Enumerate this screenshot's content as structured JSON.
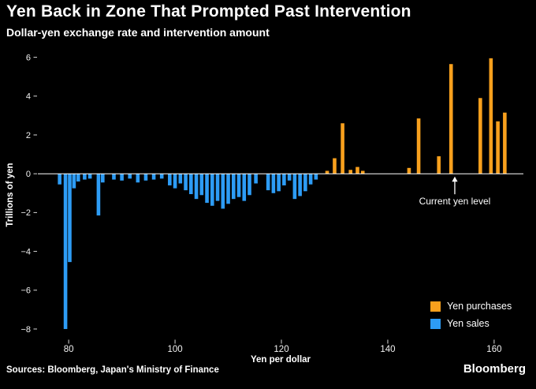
{
  "footer": {
    "sources": "Sources: Bloomberg, Japan's Ministry of Finance",
    "brand": "Bloomberg"
  },
  "chart_data": {
    "type": "bar",
    "title": "Yen Back in Zone That Prompted Past Intervention",
    "subtitle": "Dollar-yen exchange rate and intervention amount",
    "xlabel": "Yen per dollar",
    "ylabel": "Trillions of yen",
    "xlim": [
      74.2,
      165.5
    ],
    "ylim": [
      -8.55,
      6.35
    ],
    "x_ticks": [
      80,
      100,
      120,
      140,
      160
    ],
    "y_ticks": [
      -8,
      -6,
      -4,
      -2,
      0,
      2,
      4,
      6
    ],
    "grid": false,
    "background": "#000000",
    "annotation": {
      "label": "Current yen level",
      "x": 152.6
    },
    "legend": {
      "position": "bottom-right",
      "entries": [
        {
          "label": "Yen purchases",
          "color": "#f8a01d"
        },
        {
          "label": "Yen sales",
          "color": "#2d9cf5"
        }
      ]
    },
    "series": [
      {
        "name": "Yen purchases",
        "color": "#f8a01d",
        "points": [
          [
            128.6,
            0.15
          ],
          [
            130.0,
            0.8
          ],
          [
            131.5,
            2.6
          ],
          [
            133.0,
            0.2
          ],
          [
            134.3,
            0.35
          ],
          [
            135.3,
            0.15
          ],
          [
            144.0,
            0.3
          ],
          [
            145.8,
            2.85
          ],
          [
            149.6,
            0.9
          ],
          [
            151.9,
            5.65
          ],
          [
            157.4,
            3.9
          ],
          [
            159.4,
            5.95
          ],
          [
            160.7,
            2.7
          ],
          [
            162.0,
            3.15
          ]
        ]
      },
      {
        "name": "Yen sales",
        "color": "#2d9cf5",
        "points": [
          [
            78.3,
            -0.55
          ],
          [
            79.4,
            -8.0
          ],
          [
            80.2,
            -4.55
          ],
          [
            81.0,
            -0.75
          ],
          [
            81.8,
            -0.4
          ],
          [
            83.0,
            -0.3
          ],
          [
            84.0,
            -0.25
          ],
          [
            85.6,
            -2.15
          ],
          [
            86.4,
            -0.45
          ],
          [
            88.5,
            -0.3
          ],
          [
            90.0,
            -0.35
          ],
          [
            91.5,
            -0.25
          ],
          [
            93.0,
            -0.45
          ],
          [
            94.5,
            -0.35
          ],
          [
            96.0,
            -0.3
          ],
          [
            97.5,
            -0.25
          ],
          [
            99.0,
            -0.6
          ],
          [
            100.0,
            -0.75
          ],
          [
            101.0,
            -0.5
          ],
          [
            102.0,
            -0.85
          ],
          [
            103.0,
            -1.05
          ],
          [
            104.0,
            -1.3
          ],
          [
            105.0,
            -1.1
          ],
          [
            106.0,
            -1.5
          ],
          [
            107.0,
            -1.65
          ],
          [
            108.0,
            -1.4
          ],
          [
            109.0,
            -1.8
          ],
          [
            110.0,
            -1.55
          ],
          [
            111.0,
            -1.3
          ],
          [
            112.0,
            -1.2
          ],
          [
            113.0,
            -1.4
          ],
          [
            114.0,
            -1.1
          ],
          [
            115.2,
            -0.5
          ],
          [
            117.5,
            -0.85
          ],
          [
            118.5,
            -1.0
          ],
          [
            119.5,
            -0.9
          ],
          [
            120.5,
            -0.6
          ],
          [
            121.5,
            -0.35
          ],
          [
            122.5,
            -1.3
          ],
          [
            123.5,
            -1.15
          ],
          [
            124.5,
            -0.9
          ],
          [
            125.5,
            -0.55
          ],
          [
            126.5,
            -0.3
          ]
        ]
      }
    ]
  }
}
